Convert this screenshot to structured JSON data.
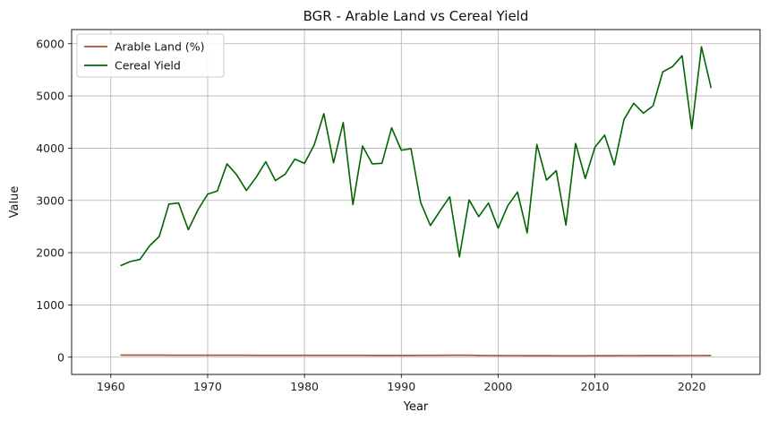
{
  "chart_data": {
    "type": "line",
    "title": "BGR - Arable Land vs Cereal Yield",
    "xlabel": "Year",
    "ylabel": "Value",
    "xlim": [
      1955.95,
      2027.05
    ],
    "ylim": [
      -330,
      6270
    ],
    "x_ticks": [
      1960,
      1970,
      1980,
      1990,
      2000,
      2010,
      2020
    ],
    "y_ticks": [
      0,
      1000,
      2000,
      3000,
      4000,
      5000,
      6000
    ],
    "grid": true,
    "legend_position": "top-left",
    "x": [
      1961,
      1962,
      1963,
      1964,
      1965,
      1966,
      1967,
      1968,
      1969,
      1970,
      1971,
      1972,
      1973,
      1974,
      1975,
      1976,
      1977,
      1978,
      1979,
      1980,
      1981,
      1982,
      1983,
      1984,
      1985,
      1986,
      1987,
      1988,
      1989,
      1990,
      1991,
      1992,
      1993,
      1994,
      1995,
      1996,
      1997,
      1998,
      1999,
      2000,
      2001,
      2002,
      2003,
      2004,
      2005,
      2006,
      2007,
      2008,
      2009,
      2010,
      2011,
      2012,
      2013,
      2014,
      2015,
      2016,
      2017,
      2018,
      2019,
      2020,
      2021,
      2022
    ],
    "series": [
      {
        "name": "Arable Land (%)",
        "color": "#a0522d",
        "values": [
          40,
          39,
          39,
          39,
          39,
          38,
          38,
          38,
          38,
          38,
          38,
          37,
          37,
          37,
          36,
          36,
          36,
          35,
          35,
          35,
          35,
          35,
          35,
          35,
          35,
          35,
          34,
          34,
          34,
          34,
          34,
          35,
          36,
          36,
          37,
          37,
          38,
          33,
          32,
          31,
          30,
          30,
          29,
          29,
          29,
          28,
          28,
          28,
          28,
          29,
          29,
          29,
          30,
          30,
          31,
          31,
          31,
          31,
          32,
          32,
          32,
          33
        ]
      },
      {
        "name": "Cereal Yield",
        "color": "#006400",
        "values": [
          1750,
          1830,
          1870,
          2130,
          2310,
          2930,
          2950,
          2440,
          2820,
          3120,
          3180,
          3700,
          3490,
          3190,
          3440,
          3740,
          3380,
          3500,
          3790,
          3710,
          4060,
          4660,
          3720,
          4490,
          2920,
          4040,
          3700,
          3710,
          4390,
          3960,
          3990,
          2960,
          2520,
          2800,
          3070,
          1920,
          3010,
          2690,
          2950,
          2470,
          2900,
          3160,
          2380,
          4070,
          3390,
          3570,
          2530,
          4090,
          3420,
          4020,
          4250,
          3680,
          4550,
          4860,
          4670,
          4810,
          5460,
          5560,
          5770,
          4370,
          5940,
          5150
        ]
      }
    ]
  }
}
